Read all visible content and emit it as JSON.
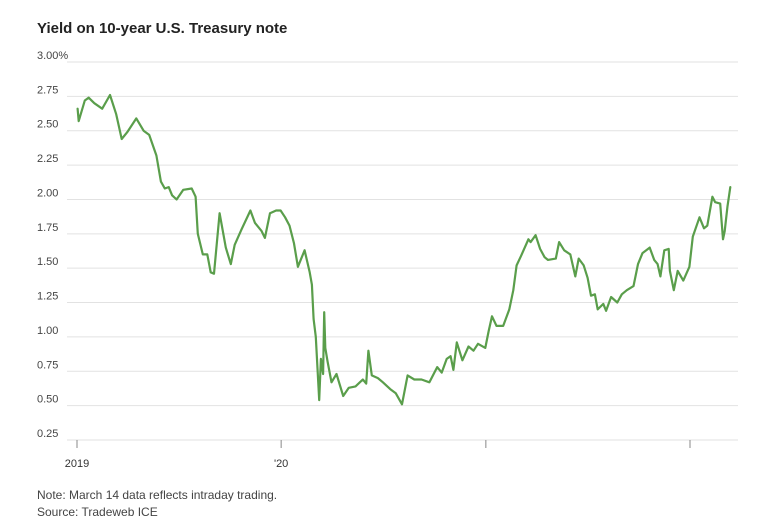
{
  "title": "Yield on 10-year U.S. Treasury note",
  "note": "Note: March 14 data reflects intraday trading.",
  "source": "Source: Tradeweb ICE",
  "colors": {
    "line": "#5a9e4b",
    "grid": "#e2e2e2",
    "axis": "#888888"
  },
  "chart_data": {
    "type": "line",
    "title": "Yield on 10-year U.S. Treasury note",
    "xlabel": "",
    "ylabel": "",
    "ylim": [
      0.25,
      3.0
    ],
    "yticks": [
      {
        "value": 3.0,
        "label": "3.00%"
      },
      {
        "value": 2.75,
        "label": "2.75"
      },
      {
        "value": 2.5,
        "label": "2.50"
      },
      {
        "value": 2.25,
        "label": "2.25"
      },
      {
        "value": 2.0,
        "label": "2.00"
      },
      {
        "value": 1.75,
        "label": "1.75"
      },
      {
        "value": 1.5,
        "label": "1.50"
      },
      {
        "value": 1.25,
        "label": "1.25"
      },
      {
        "value": 1.0,
        "label": "1.00"
      },
      {
        "value": 0.75,
        "label": "0.75"
      },
      {
        "value": 0.5,
        "label": "0.50"
      },
      {
        "value": 0.25,
        "label": "0.25"
      }
    ],
    "xlim": [
      "2019-01-02",
      "2022-03-14"
    ],
    "xticks": [
      {
        "date": "2019-01-01",
        "label": "2019"
      },
      {
        "date": "2020-01-01",
        "label": "'20"
      },
      {
        "date": "2021-01-01",
        "label": ""
      },
      {
        "date": "2022-01-01",
        "label": ""
      }
    ],
    "grid": true,
    "series": [
      {
        "x": [
          "2019-01-02",
          "2019-01-04",
          "2019-01-15",
          "2019-01-22",
          "2019-02-01",
          "2019-02-15",
          "2019-03-01",
          "2019-03-12",
          "2019-03-22",
          "2019-04-01",
          "2019-04-17",
          "2019-04-30",
          "2019-05-10",
          "2019-05-23",
          "2019-05-31",
          "2019-06-07",
          "2019-06-14",
          "2019-06-20",
          "2019-06-28",
          "2019-07-10",
          "2019-07-25",
          "2019-08-01",
          "2019-08-05",
          "2019-08-14",
          "2019-08-22",
          "2019-08-28",
          "2019-09-03",
          "2019-09-13",
          "2019-09-24",
          "2019-10-03",
          "2019-10-10",
          "2019-10-22",
          "2019-11-07",
          "2019-11-15",
          "2019-11-27",
          "2019-12-03",
          "2019-12-12",
          "2019-12-23",
          "2019-12-31",
          "2020-01-08",
          "2020-01-16",
          "2020-01-24",
          "2020-01-31",
          "2020-02-07",
          "2020-02-12",
          "2020-02-21",
          "2020-02-25",
          "2020-02-28",
          "2020-03-03",
          "2020-03-06",
          "2020-03-09",
          "2020-03-12",
          "2020-03-16",
          "2020-03-18",
          "2020-03-20",
          "2020-03-24",
          "2020-03-31",
          "2020-04-09",
          "2020-04-21",
          "2020-05-01",
          "2020-05-13",
          "2020-05-26",
          "2020-06-01",
          "2020-06-05",
          "2020-06-11",
          "2020-06-22",
          "2020-07-01",
          "2020-07-14",
          "2020-07-24",
          "2020-08-04",
          "2020-08-14",
          "2020-08-26",
          "2020-09-08",
          "2020-09-22",
          "2020-10-06",
          "2020-10-14",
          "2020-10-23",
          "2020-10-30",
          "2020-11-04",
          "2020-11-10",
          "2020-11-20",
          "2020-12-01",
          "2020-12-10",
          "2020-12-18",
          "2020-12-31",
          "2021-01-06",
          "2021-01-12",
          "2021-01-20",
          "2021-02-01",
          "2021-02-12",
          "2021-02-19",
          "2021-02-25",
          "2021-03-05",
          "2021-03-18",
          "2021-03-22",
          "2021-03-31",
          "2021-04-08",
          "2021-04-16",
          "2021-04-22",
          "2021-05-06",
          "2021-05-12",
          "2021-05-21",
          "2021-06-01",
          "2021-06-10",
          "2021-06-16",
          "2021-06-25",
          "2021-07-02",
          "2021-07-08",
          "2021-07-15",
          "2021-07-20",
          "2021-07-30",
          "2021-08-04",
          "2021-08-13",
          "2021-08-24",
          "2021-09-01",
          "2021-09-10",
          "2021-09-22",
          "2021-09-30",
          "2021-10-08",
          "2021-10-21",
          "2021-10-29",
          "2021-11-04",
          "2021-11-09",
          "2021-11-16",
          "2021-11-24",
          "2021-11-26",
          "2021-12-03",
          "2021-12-10",
          "2021-12-20",
          "2021-12-31",
          "2022-01-06",
          "2022-01-18",
          "2022-01-26",
          "2022-02-01",
          "2022-02-10",
          "2022-02-15",
          "2022-02-24",
          "2022-03-01",
          "2022-03-04",
          "2022-03-09",
          "2022-03-14"
        ],
        "y": [
          2.66,
          2.57,
          2.72,
          2.74,
          2.7,
          2.66,
          2.76,
          2.62,
          2.44,
          2.49,
          2.59,
          2.5,
          2.47,
          2.32,
          2.13,
          2.08,
          2.09,
          2.03,
          2.0,
          2.07,
          2.08,
          2.02,
          1.75,
          1.6,
          1.6,
          1.47,
          1.46,
          1.9,
          1.65,
          1.53,
          1.67,
          1.78,
          1.92,
          1.83,
          1.77,
          1.72,
          1.9,
          1.92,
          1.92,
          1.87,
          1.81,
          1.68,
          1.51,
          1.58,
          1.63,
          1.47,
          1.38,
          1.13,
          1.0,
          0.77,
          0.54,
          0.84,
          0.73,
          1.18,
          0.92,
          0.82,
          0.67,
          0.73,
          0.57,
          0.63,
          0.64,
          0.69,
          0.66,
          0.9,
          0.72,
          0.7,
          0.67,
          0.62,
          0.59,
          0.51,
          0.72,
          0.69,
          0.69,
          0.67,
          0.78,
          0.74,
          0.84,
          0.86,
          0.76,
          0.96,
          0.83,
          0.93,
          0.9,
          0.95,
          0.92,
          1.04,
          1.15,
          1.08,
          1.08,
          1.2,
          1.34,
          1.52,
          1.59,
          1.71,
          1.69,
          1.74,
          1.64,
          1.58,
          1.56,
          1.57,
          1.69,
          1.63,
          1.6,
          1.44,
          1.57,
          1.52,
          1.43,
          1.3,
          1.31,
          1.2,
          1.24,
          1.19,
          1.29,
          1.25,
          1.31,
          1.34,
          1.37,
          1.53,
          1.61,
          1.65,
          1.56,
          1.53,
          1.44,
          1.63,
          1.64,
          1.48,
          1.34,
          1.48,
          1.41,
          1.51,
          1.73,
          1.87,
          1.79,
          1.81,
          2.02,
          1.98,
          1.97,
          1.71,
          1.77,
          1.95,
          2.09
        ]
      }
    ]
  }
}
